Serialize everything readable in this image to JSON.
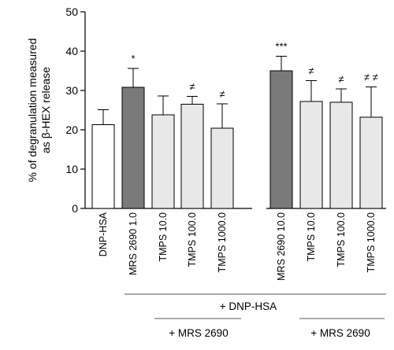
{
  "chart_data": {
    "type": "bar",
    "ylabel_lines": [
      "% of degranulation measured",
      "as β-HEX release"
    ],
    "ylim": [
      0,
      50
    ],
    "yticks": [
      0,
      10,
      20,
      30,
      40,
      50
    ],
    "grid": false,
    "categories": [
      "DNP-HSA",
      "MRS 2690 1.0",
      "TMPS 10.0",
      "TMPS 100.0",
      "TMPS 1000.0",
      "MRS 2690 10.0",
      "TMPS 10.0",
      "TMPS 100.0",
      "TMPS 1000.0"
    ],
    "values": [
      21.3,
      30.8,
      23.8,
      26.5,
      20.4,
      35.0,
      27.2,
      27.0,
      23.2
    ],
    "errors": [
      3.8,
      4.8,
      4.8,
      2.0,
      6.2,
      3.7,
      5.3,
      3.4,
      7.7
    ],
    "annotations": [
      "",
      "*",
      "",
      "≠",
      "≠",
      "***",
      "≠",
      "≠",
      "≠ ≠"
    ],
    "bar_colors": [
      "#ffffff",
      "#7a7a7a",
      "#e8e8e8",
      "#e8e8e8",
      "#e8e8e8",
      "#7a7a7a",
      "#e8e8e8",
      "#e8e8e8",
      "#e8e8e8"
    ],
    "group_labels": {
      "dnp_hsa": "+ DNP-HSA",
      "mrs_left": "+ MRS 2690",
      "mrs_right": "+ MRS 2690"
    }
  }
}
